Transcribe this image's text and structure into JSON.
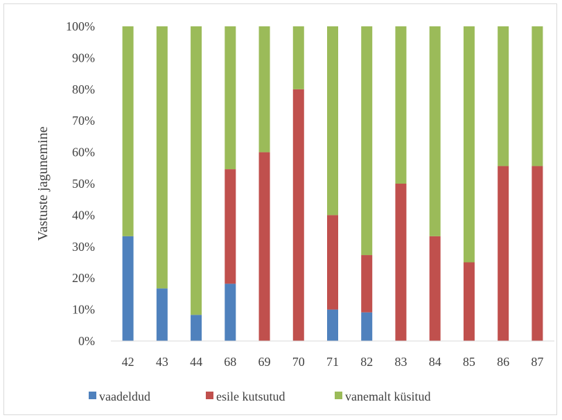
{
  "chart_data": {
    "type": "bar",
    "stacked": true,
    "percent_stacked": true,
    "ylabel": "Vastuste jagunemine",
    "xlabel": "",
    "ylim": [
      0,
      100
    ],
    "yticks": [
      "0%",
      "10%",
      "20%",
      "30%",
      "40%",
      "50%",
      "60%",
      "70%",
      "80%",
      "90%",
      "100%"
    ],
    "categories": [
      "42",
      "43",
      "44",
      "68",
      "69",
      "70",
      "71",
      "82",
      "83",
      "84",
      "85",
      "86",
      "87"
    ],
    "series": [
      {
        "name": "vaadeldud",
        "color": "#4f81bd",
        "values": [
          33.3,
          16.7,
          8.3,
          18.2,
          0,
          0,
          10,
          9.1,
          0,
          0,
          0,
          0,
          0
        ]
      },
      {
        "name": "esile kutsutud",
        "color": "#c0504d",
        "values": [
          0,
          0,
          0,
          36.4,
          60,
          80,
          30,
          18.2,
          50,
          33.3,
          25,
          55.6,
          55.6
        ]
      },
      {
        "name": "vanemalt küsitud",
        "color": "#9bbb59",
        "values": [
          66.7,
          83.3,
          91.7,
          45.4,
          40,
          20,
          60,
          72.7,
          50,
          66.7,
          75,
          44.4,
          44.4
        ]
      }
    ],
    "grid": false,
    "legend_position": "bottom"
  }
}
